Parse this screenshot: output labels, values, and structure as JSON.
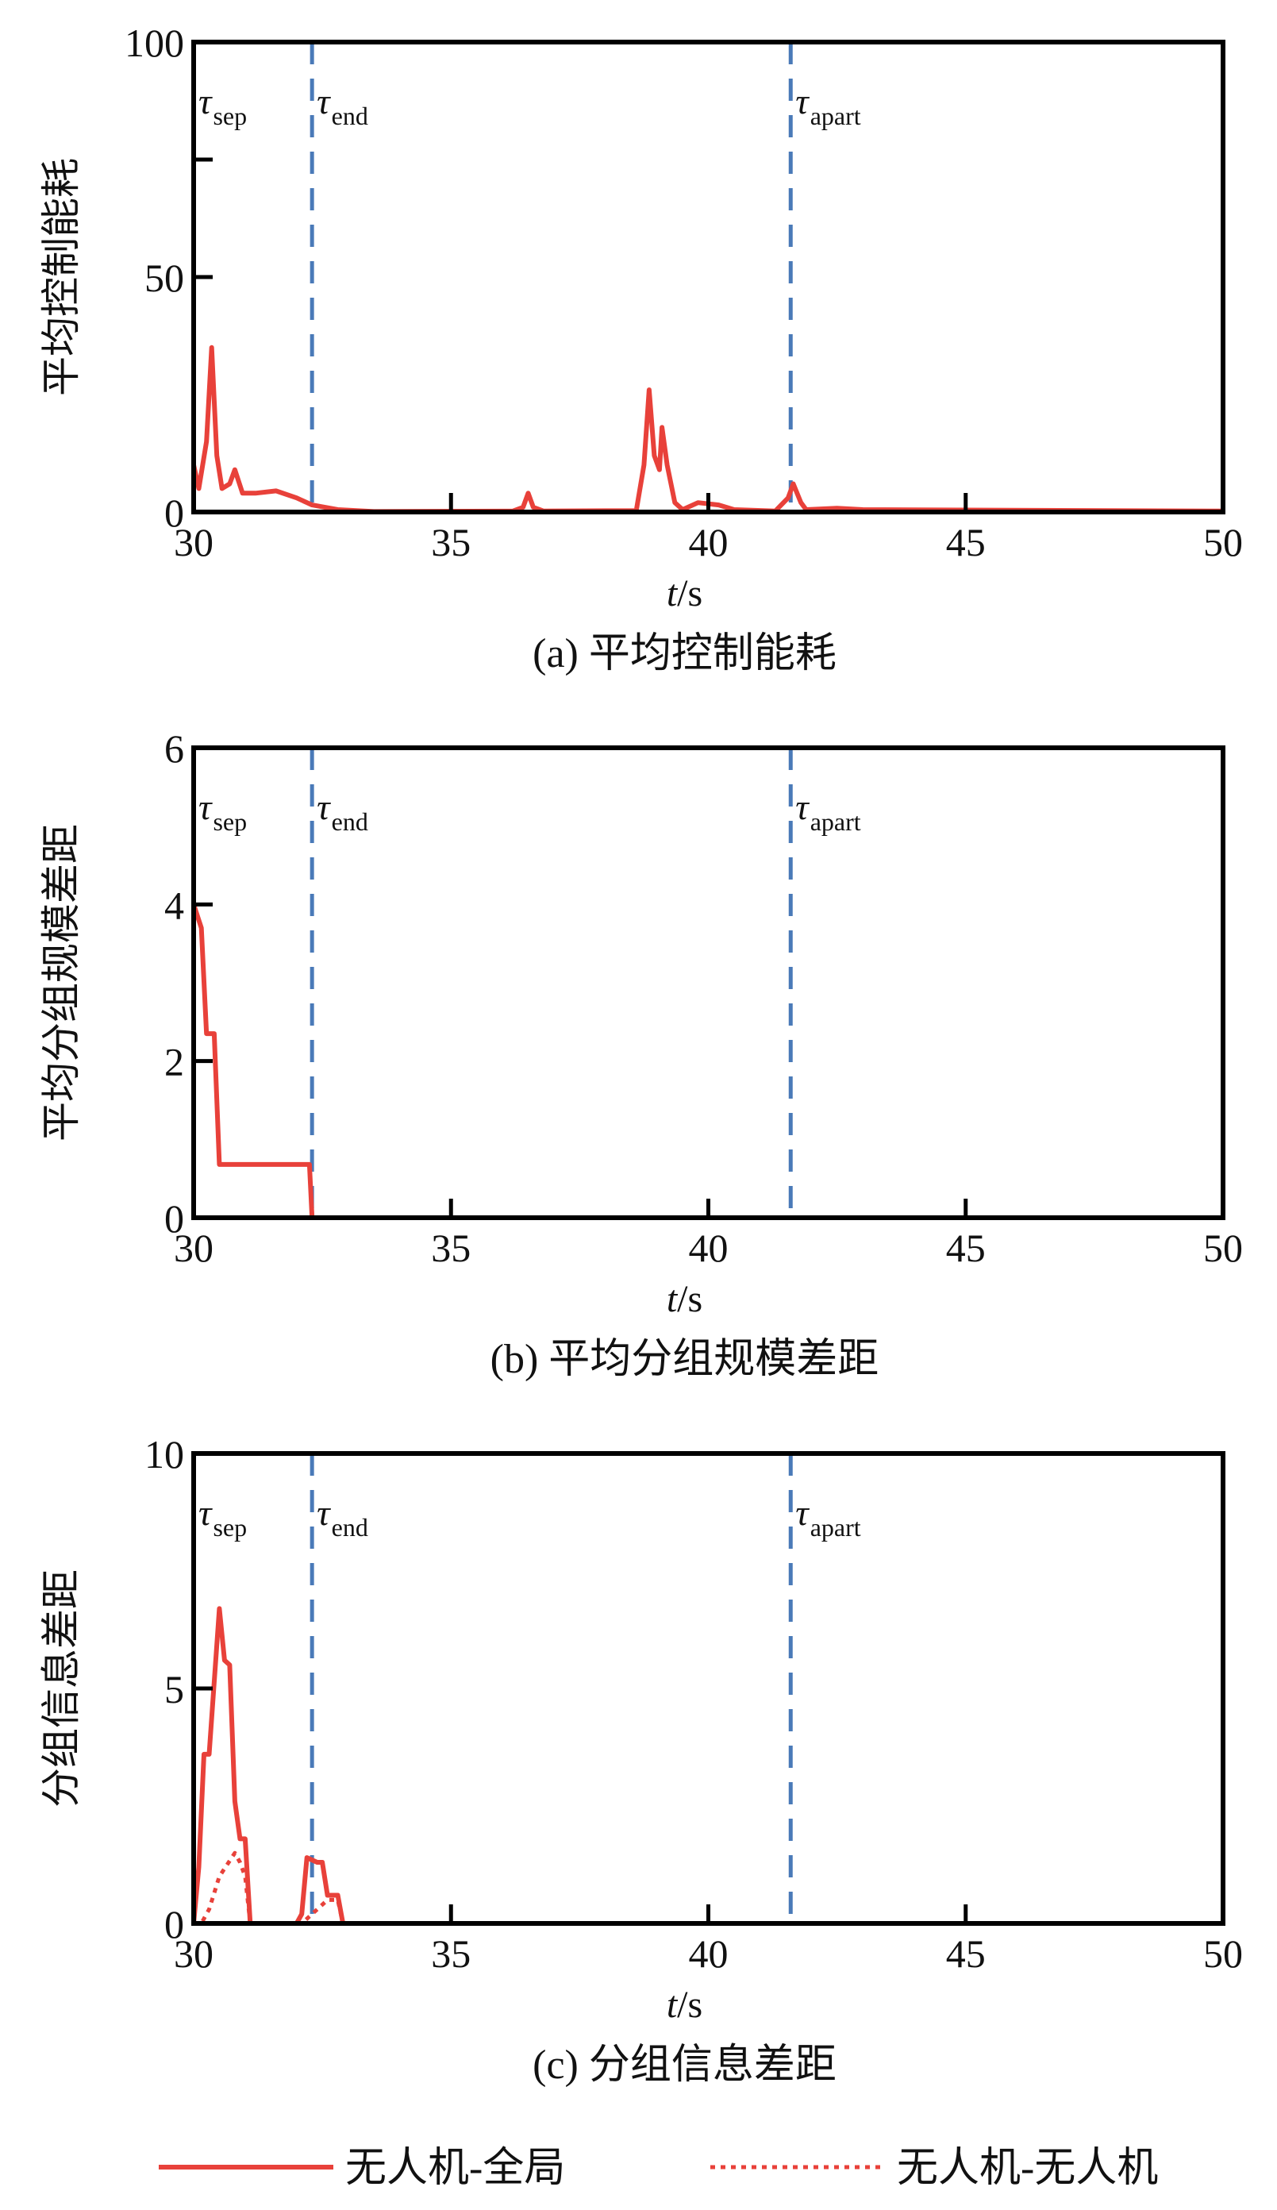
{
  "colors": {
    "series": "#e8413a",
    "marker_line": "#4a7ab8",
    "axis": "#000000"
  },
  "legend": {
    "position": "bottom",
    "entries": [
      {
        "label": "无人机-全局",
        "style": "solid"
      },
      {
        "label": "无人机-无人机",
        "style": "dotted"
      }
    ]
  },
  "chart_data": [
    {
      "type": "line",
      "caption": "(a) 平均控制能耗",
      "xlabel_italic": "t",
      "xlabel_unit": "/s",
      "ylabel": "平均控制能耗",
      "xlim": [
        30,
        50
      ],
      "ylim": [
        0,
        100
      ],
      "xticks": [
        "30",
        "35",
        "40",
        "45",
        "50"
      ],
      "yticks": [
        "0",
        "50",
        "100"
      ],
      "yminor": [
        75
      ],
      "markers": [
        {
          "x": 30,
          "sym": "τ",
          "sub": "sep",
          "line": false
        },
        {
          "x": 32.3,
          "sym": "τ",
          "sub": "end",
          "line": true
        },
        {
          "x": 41.6,
          "sym": "τ",
          "sub": "apart",
          "line": true
        }
      ],
      "series": [
        {
          "name": "无人机-全局",
          "style": "solid",
          "x": [
            30.0,
            30.1,
            30.25,
            30.35,
            30.45,
            30.55,
            30.7,
            30.8,
            30.95,
            31.2,
            31.6,
            32.0,
            32.3,
            32.8,
            33.5,
            36.2,
            36.4,
            36.5,
            36.6,
            36.8,
            38.6,
            38.75,
            38.85,
            38.95,
            39.05,
            39.1,
            39.2,
            39.35,
            39.5,
            39.8,
            40.2,
            40.5,
            41.3,
            41.55,
            41.65,
            41.8,
            41.9,
            42.5,
            43.0,
            50.0
          ],
          "y": [
            10,
            5,
            15,
            35,
            12,
            5,
            6,
            9,
            4,
            4,
            4.5,
            3,
            1.5,
            0.5,
            0.1,
            0.2,
            1,
            4,
            1,
            0.2,
            0.3,
            10,
            26,
            12,
            9,
            18,
            10,
            2,
            0.5,
            2,
            1.5,
            0.5,
            0.2,
            3,
            6,
            2,
            0.5,
            0.8,
            0.5,
            0.2
          ]
        }
      ]
    },
    {
      "type": "line",
      "caption": "(b) 平均分组规模差距",
      "xlabel_italic": "t",
      "xlabel_unit": "/s",
      "ylabel": "平均分组规模差距",
      "xlim": [
        30,
        50
      ],
      "ylim": [
        0,
        6
      ],
      "xticks": [
        "30",
        "35",
        "40",
        "45",
        "50"
      ],
      "yticks": [
        "0",
        "2",
        "4",
        "6"
      ],
      "yminor": [],
      "markers": [
        {
          "x": 30,
          "sym": "τ",
          "sub": "sep",
          "line": false
        },
        {
          "x": 32.3,
          "sym": "τ",
          "sub": "end",
          "line": true
        },
        {
          "x": 41.6,
          "sym": "τ",
          "sub": "apart",
          "line": true
        }
      ],
      "series": [
        {
          "name": "无人机-全局",
          "style": "solid",
          "x": [
            30.0,
            30.15,
            30.25,
            30.4,
            30.5,
            32.25,
            32.3,
            50.0
          ],
          "y": [
            4,
            3.7,
            2.35,
            2.35,
            0.68,
            0.68,
            0,
            0
          ]
        }
      ]
    },
    {
      "type": "line",
      "caption": "(c) 分组信息差距",
      "xlabel_italic": "t",
      "xlabel_unit": "/s",
      "ylabel": "分组信息差距",
      "xlim": [
        30,
        50
      ],
      "ylim": [
        0,
        10
      ],
      "xticks": [
        "30",
        "35",
        "40",
        "45",
        "50"
      ],
      "yticks": [
        "0",
        "5",
        "10"
      ],
      "yminor": [],
      "markers": [
        {
          "x": 30,
          "sym": "τ",
          "sub": "sep",
          "line": false
        },
        {
          "x": 32.3,
          "sym": "τ",
          "sub": "end",
          "line": true
        },
        {
          "x": 41.6,
          "sym": "τ",
          "sub": "apart",
          "line": true
        }
      ],
      "series": [
        {
          "name": "无人机-全局",
          "style": "solid",
          "x": [
            30.0,
            30.1,
            30.2,
            30.3,
            30.5,
            30.6,
            30.7,
            30.8,
            30.9,
            31.0,
            31.1,
            32.0,
            32.1,
            32.2,
            32.4,
            32.5,
            32.6,
            32.8,
            32.9,
            50.0
          ],
          "y": [
            0,
            1.2,
            3.6,
            3.6,
            6.7,
            5.6,
            5.5,
            2.6,
            1.8,
            1.8,
            0,
            0,
            0.2,
            1.4,
            1.3,
            1.3,
            0.6,
            0.6,
            0,
            0
          ]
        },
        {
          "name": "无人机-无人机",
          "style": "dotted",
          "x": [
            30.0,
            30.15,
            30.3,
            30.5,
            30.8,
            30.9,
            31.0,
            31.1,
            32.1,
            32.3,
            32.6,
            32.8,
            32.9,
            50.0
          ],
          "y": [
            0,
            0,
            0.3,
            1.0,
            1.5,
            1.3,
            1.0,
            0,
            0,
            0.2,
            0.5,
            0.5,
            0,
            0
          ]
        }
      ]
    }
  ]
}
